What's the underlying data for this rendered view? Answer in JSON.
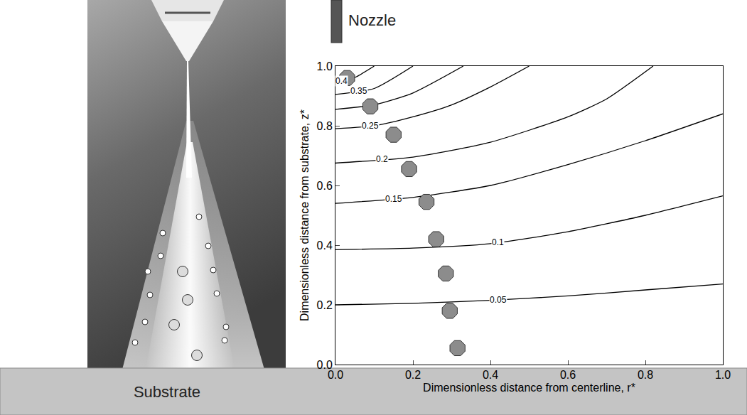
{
  "chart_data": {
    "type": "contour_lines",
    "xlabel": "Dimensionless distance from centerline, r*",
    "ylabel": "Dimensionless distance from substrate, z*",
    "xlim": [
      0,
      1
    ],
    "ylim": [
      0,
      1
    ],
    "xticks": [
      {
        "value": 0,
        "label": "0.0"
      },
      0.2,
      0.4,
      0.6,
      0.8,
      {
        "value": 1,
        "label": "1.0"
      }
    ],
    "yticks": [
      {
        "value": 0,
        "label": "0.0"
      },
      0.2,
      0.4,
      0.6,
      0.8,
      {
        "value": 1,
        "label": "1.0"
      }
    ],
    "grid": false,
    "series": [
      {
        "name": "0.4",
        "color": "#000000",
        "x": [
          0,
          0.05,
          0.1
        ],
        "values": [
          0.945,
          0.962,
          1.0
        ]
      },
      {
        "name": "0.35",
        "color": "#000000",
        "x": [
          0,
          0.1,
          0.2
        ],
        "values": [
          0.905,
          0.925,
          1.0
        ]
      },
      {
        "color": "#000000",
        "x": [
          0,
          0.1,
          0.2,
          0.33
        ],
        "values": [
          0.855,
          0.87,
          0.91,
          1.0
        ]
      },
      {
        "name": "0.25",
        "color": "#000000",
        "x": [
          0,
          0.1,
          0.2,
          0.3,
          0.4,
          0.5
        ],
        "values": [
          0.79,
          0.8,
          0.83,
          0.87,
          0.93,
          1.0
        ]
      },
      {
        "name": "0.2",
        "color": "#000000",
        "x": [
          0,
          0.2,
          0.4,
          0.6,
          0.7,
          0.82
        ],
        "values": [
          0.675,
          0.695,
          0.745,
          0.83,
          0.89,
          1.0
        ]
      },
      {
        "name": "0.15",
        "color": "#000000",
        "x": [
          0,
          0.2,
          0.4,
          0.6,
          0.8,
          1.0
        ],
        "values": [
          0.54,
          0.56,
          0.6,
          0.67,
          0.75,
          0.84
        ]
      },
      {
        "name": "0.1",
        "color": "#000000",
        "x": [
          0,
          0.2,
          0.4,
          0.6,
          0.8,
          1.0
        ],
        "values": [
          0.385,
          0.39,
          0.405,
          0.445,
          0.5,
          0.565
        ]
      },
      {
        "name": "0.05",
        "color": "#000000",
        "x": [
          0,
          0.2,
          0.4,
          0.6,
          0.8,
          1.0
        ],
        "values": [
          0.2,
          0.205,
          0.215,
          0.23,
          0.25,
          0.27
        ]
      }
    ],
    "particles": {
      "color": "#8c8c8c",
      "x": [
        0.03,
        0.09,
        0.15,
        0.19,
        0.235,
        0.26,
        0.285,
        0.295,
        0.315
      ],
      "values": [
        0.96,
        0.865,
        0.77,
        0.655,
        0.545,
        0.42,
        0.305,
        0.18,
        0.055
      ]
    }
  },
  "labels": {
    "nozzle": "Nozzle",
    "substrate": "Substrate"
  }
}
